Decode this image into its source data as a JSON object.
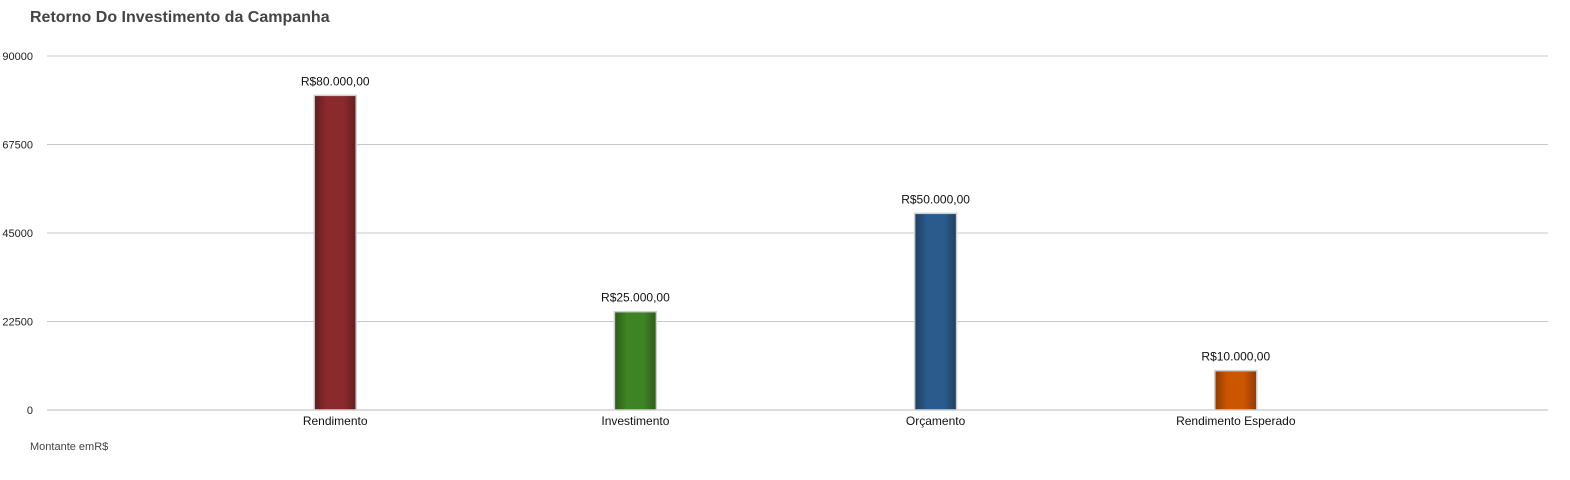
{
  "chart_data": {
    "type": "bar",
    "title": "Retorno Do Investimento da Campanha",
    "footnote": "Montante emR$",
    "categories": [
      "Rendimento",
      "Investimento",
      "Orçamento",
      "Rendimento Esperado"
    ],
    "values": [
      80000,
      25000,
      50000,
      10000
    ],
    "data_labels": [
      "R$80.000,00",
      "R$25.000,00",
      "R$50.000,00",
      "R$10.000,00"
    ],
    "colors": [
      "#8b2a2d",
      "#3f8424",
      "#2b5b8c",
      "#cc5500"
    ],
    "y_ticks": [
      0,
      22500,
      45000,
      67500,
      90000
    ],
    "ylim": [
      0,
      90000
    ],
    "grid": true,
    "legend": "none"
  }
}
